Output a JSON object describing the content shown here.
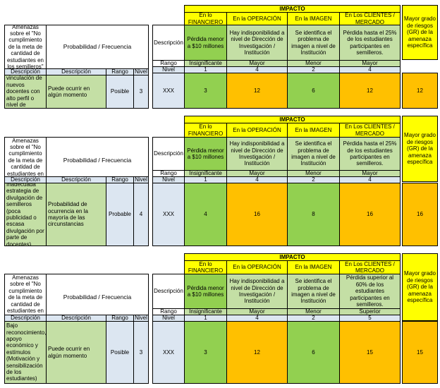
{
  "header": {
    "impacto": "IMPACTO",
    "amenazas": "Amenazas sobre el \"No cumplimiento de la meta de cantidad de estudiantes en los semilleros\"",
    "probabilidad": "Probabilidad / Frecuencia",
    "descripcion_col": "Descripción",
    "rango_col": "Rango",
    "nivel_col": "Nivel",
    "mayor_grado": "Mayor grado de riesgos (GR) de la amenaza específica",
    "impact_cols": [
      {
        "title": "En lo FINANCIERO",
        "desc": "Pérdida menor a $10 millones",
        "rango": "Insignificante",
        "nivel": "1"
      },
      {
        "title": "En la OPERACIÓN",
        "desc": "Hay indisponibilidad a nivel de Dirección de Investigación / Institución",
        "rango": "Mayor",
        "nivel": "4"
      },
      {
        "title": "En la IMAGEN",
        "desc": "Se identifica el problema de imagen a nivel de Institución",
        "rango": "Menor",
        "nivel": "2"
      },
      {
        "title": "En Los CLIENTES / MERCADO",
        "desc": "Pérdida hasta el 25% de los estudiantes participantes en semilleros.",
        "rango": "Mayor",
        "nivel": "4"
      }
    ]
  },
  "blocks": [
    {
      "threat": "Baja vinculación de nuevos docentes con alto perfil o nivel de cualificación",
      "prob_desc": "Puede ocurrir en algún momento",
      "prob_rango": "Posible",
      "prob_nivel": "3",
      "desc_value": "XXX",
      "clientes_desc": "Pérdida hasta el 25% de los estudiantes participantes en semilleros.",
      "clientes_rango": "Mayor",
      "clientes_nivel": "4",
      "values": [
        "3",
        "12",
        "6",
        "12"
      ],
      "gr": "12"
    },
    {
      "threat": "Inadecuada estrategia de divulgación de semilleros (poca publicidad o escasa divulgación por parte de docentes).",
      "prob_desc": "Probabilidad de ocurrencia en la mayoría de las circunstancias",
      "prob_rango": "Probable",
      "prob_nivel": "4",
      "desc_value": "XXX",
      "clientes_desc": "Pérdida hasta el 25% de los estudiantes participantes en semilleros.",
      "clientes_rango": "Mayor",
      "clientes_nivel": "4",
      "values": [
        "4",
        "16",
        "8",
        "16"
      ],
      "gr": "16"
    },
    {
      "threat": "Bajo reconocimiento, apoyo económico y estímulos (Motivación y sensibilización de los estudiantes)",
      "prob_desc": "Puede ocurrir en algún momento",
      "prob_rango": "Posible",
      "prob_nivel": "3",
      "desc_value": "XXX",
      "clientes_desc": "Pérdida superior al 60% de los estudiantes participantes en semilleros.",
      "clientes_rango": "Superior",
      "clientes_nivel": "5",
      "values": [
        "3",
        "12",
        "6",
        "15"
      ],
      "gr": "15"
    }
  ],
  "colors": {
    "green": "#92d050",
    "orange": "#ffc000",
    "light_green": "#c4dfa5",
    "light_blue": "#dce6f1",
    "yellow": "#ffff00"
  }
}
